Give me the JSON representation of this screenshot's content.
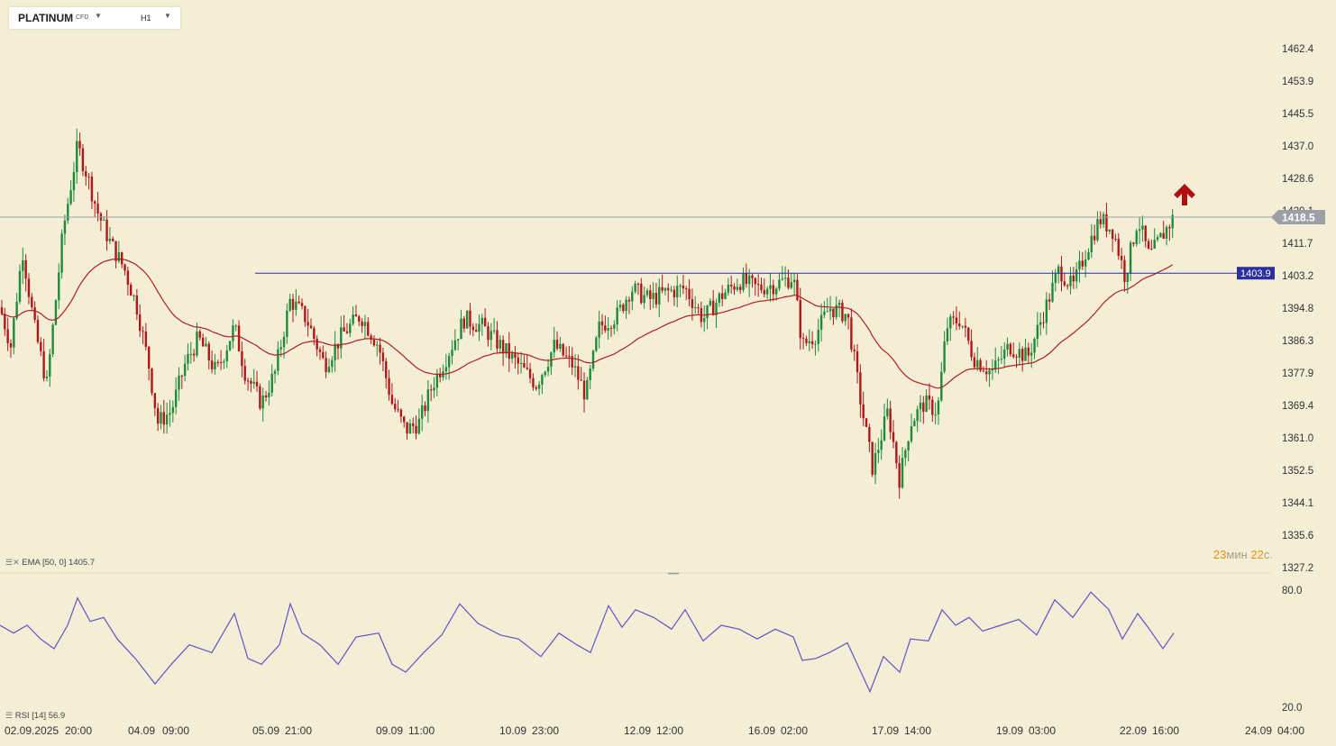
{
  "header": {
    "symbol": "PLATINUM",
    "symbol_type": "CFD",
    "timeframe": "H1"
  },
  "price_axis_labels": [
    "1462.4",
    "1453.9",
    "1445.5",
    "1437.0",
    "1428.6",
    "1420.1",
    "1411.7",
    "1403.2",
    "1394.8",
    "1386.3",
    "1377.9",
    "1369.4",
    "1361.0",
    "1352.5",
    "1344.1",
    "1335.6",
    "1327.2"
  ],
  "current_price": "1418.5",
  "horizontal_level": "1403.9",
  "timer": {
    "minutes": "23",
    "min_unit": "мин",
    "seconds": "22",
    "sec_unit": "с."
  },
  "ema_label": {
    "name": "EMA",
    "params": "[50, 0]",
    "value": "1405.7"
  },
  "rsi_label": {
    "name": "RSI",
    "params": "[14]",
    "value": "56.9"
  },
  "rsi_axis": [
    "80.0",
    "20.0"
  ],
  "time_labels": [
    "02.09.2025",
    "20:00",
    "04.09",
    "09:00",
    "05.09",
    "21:00",
    "09.09",
    "11:00",
    "10.09",
    "23:00",
    "12.09",
    "12:00",
    "16.09",
    "02:00",
    "17.09",
    "14:00",
    "19.09",
    "03:00",
    "22.09",
    "16:00",
    "24.09",
    "04:00"
  ],
  "colors": {
    "up": "#1e8a3a",
    "down": "#b01818",
    "ema": "#b02020",
    "rsi": "#6a4fc4",
    "level": "#2b2fa0",
    "current": "#9aa0a6",
    "signal": "#b01010"
  },
  "chart_data": {
    "type": "candlestick",
    "series": [
      {
        "name": "EMA [50, 0]"
      },
      {
        "name": "RSI [14]"
      }
    ],
    "ylim": [
      1327.2,
      1462.4
    ],
    "anchors": [
      {
        "t": 0,
        "p": 1395
      },
      {
        "t": 12,
        "p": 1385
      },
      {
        "t": 25,
        "p": 1410
      },
      {
        "t": 38,
        "p": 1390
      },
      {
        "t": 52,
        "p": 1375
      },
      {
        "t": 70,
        "p": 1415
      },
      {
        "t": 86,
        "p": 1437
      },
      {
        "t": 96,
        "p": 1430
      },
      {
        "t": 108,
        "p": 1420
      },
      {
        "t": 122,
        "p": 1412
      },
      {
        "t": 138,
        "p": 1405
      },
      {
        "t": 152,
        "p": 1395
      },
      {
        "t": 165,
        "p": 1380
      },
      {
        "t": 175,
        "p": 1365
      },
      {
        "t": 190,
        "p": 1368
      },
      {
        "t": 205,
        "p": 1380
      },
      {
        "t": 220,
        "p": 1387
      },
      {
        "t": 240,
        "p": 1378
      },
      {
        "t": 260,
        "p": 1390
      },
      {
        "t": 272,
        "p": 1378
      },
      {
        "t": 290,
        "p": 1370
      },
      {
        "t": 305,
        "p": 1378
      },
      {
        "t": 322,
        "p": 1397
      },
      {
        "t": 340,
        "p": 1392
      },
      {
        "t": 360,
        "p": 1380
      },
      {
        "t": 380,
        "p": 1388
      },
      {
        "t": 400,
        "p": 1393
      },
      {
        "t": 420,
        "p": 1385
      },
      {
        "t": 435,
        "p": 1370
      },
      {
        "t": 450,
        "p": 1363
      },
      {
        "t": 465,
        "p": 1365
      },
      {
        "t": 480,
        "p": 1375
      },
      {
        "t": 495,
        "p": 1382
      },
      {
        "t": 515,
        "p": 1392
      },
      {
        "t": 535,
        "p": 1390
      },
      {
        "t": 555,
        "p": 1385
      },
      {
        "t": 575,
        "p": 1380
      },
      {
        "t": 595,
        "p": 1375
      },
      {
        "t": 615,
        "p": 1385
      },
      {
        "t": 635,
        "p": 1380
      },
      {
        "t": 650,
        "p": 1372
      },
      {
        "t": 665,
        "p": 1390
      },
      {
        "t": 685,
        "p": 1393
      },
      {
        "t": 700,
        "p": 1400
      },
      {
        "t": 720,
        "p": 1397
      },
      {
        "t": 740,
        "p": 1399
      },
      {
        "t": 760,
        "p": 1400
      },
      {
        "t": 780,
        "p": 1392
      },
      {
        "t": 800,
        "p": 1398
      },
      {
        "t": 820,
        "p": 1402
      },
      {
        "t": 840,
        "p": 1400
      },
      {
        "t": 860,
        "p": 1401
      },
      {
        "t": 880,
        "p": 1403
      },
      {
        "t": 890,
        "p": 1385
      },
      {
        "t": 905,
        "p": 1388
      },
      {
        "t": 920,
        "p": 1395
      },
      {
        "t": 940,
        "p": 1393
      },
      {
        "t": 955,
        "p": 1370
      },
      {
        "t": 968,
        "p": 1353
      },
      {
        "t": 985,
        "p": 1368
      },
      {
        "t": 998,
        "p": 1350
      },
      {
        "t": 1010,
        "p": 1365
      },
      {
        "t": 1025,
        "p": 1370
      },
      {
        "t": 1040,
        "p": 1368
      },
      {
        "t": 1050,
        "p": 1390
      },
      {
        "t": 1065,
        "p": 1392
      },
      {
        "t": 1080,
        "p": 1382
      },
      {
        "t": 1100,
        "p": 1378
      },
      {
        "t": 1120,
        "p": 1385
      },
      {
        "t": 1140,
        "p": 1382
      },
      {
        "t": 1160,
        "p": 1395
      },
      {
        "t": 1175,
        "p": 1405
      },
      {
        "t": 1190,
        "p": 1400
      },
      {
        "t": 1205,
        "p": 1410
      },
      {
        "t": 1220,
        "p": 1418
      },
      {
        "t": 1235,
        "p": 1415
      },
      {
        "t": 1248,
        "p": 1403
      },
      {
        "t": 1262,
        "p": 1418
      },
      {
        "t": 1275,
        "p": 1408
      },
      {
        "t": 1290,
        "p": 1414
      },
      {
        "t": 1302,
        "p": 1418.5
      }
    ],
    "rsi_points": [
      [
        0,
        62
      ],
      [
        15,
        58
      ],
      [
        30,
        62
      ],
      [
        45,
        55
      ],
      [
        60,
        50
      ],
      [
        75,
        62
      ],
      [
        86,
        76
      ],
      [
        100,
        64
      ],
      [
        115,
        66
      ],
      [
        130,
        55
      ],
      [
        150,
        45
      ],
      [
        172,
        32
      ],
      [
        190,
        42
      ],
      [
        210,
        52
      ],
      [
        235,
        48
      ],
      [
        260,
        68
      ],
      [
        275,
        45
      ],
      [
        290,
        42
      ],
      [
        310,
        52
      ],
      [
        322,
        73
      ],
      [
        335,
        58
      ],
      [
        355,
        52
      ],
      [
        375,
        42
      ],
      [
        395,
        56
      ],
      [
        420,
        58
      ],
      [
        435,
        42
      ],
      [
        450,
        38
      ],
      [
        470,
        48
      ],
      [
        490,
        57
      ],
      [
        510,
        73
      ],
      [
        530,
        63
      ],
      [
        555,
        57
      ],
      [
        575,
        55
      ],
      [
        600,
        46
      ],
      [
        620,
        58
      ],
      [
        640,
        52
      ],
      [
        655,
        48
      ],
      [
        675,
        72
      ],
      [
        690,
        61
      ],
      [
        705,
        70
      ],
      [
        725,
        66
      ],
      [
        745,
        60
      ],
      [
        760,
        70
      ],
      [
        780,
        54
      ],
      [
        800,
        62
      ],
      [
        820,
        60
      ],
      [
        840,
        55
      ],
      [
        860,
        60
      ],
      [
        880,
        56
      ],
      [
        890,
        44
      ],
      [
        905,
        45
      ],
      [
        920,
        48
      ],
      [
        940,
        53
      ],
      [
        955,
        38
      ],
      [
        965,
        28
      ],
      [
        980,
        46
      ],
      [
        998,
        38
      ],
      [
        1010,
        55
      ],
      [
        1030,
        54
      ],
      [
        1045,
        70
      ],
      [
        1060,
        62
      ],
      [
        1075,
        66
      ],
      [
        1090,
        59
      ],
      [
        1110,
        62
      ],
      [
        1130,
        65
      ],
      [
        1150,
        57
      ],
      [
        1170,
        75
      ],
      [
        1190,
        66
      ],
      [
        1210,
        79
      ],
      [
        1230,
        70
      ],
      [
        1245,
        55
      ],
      [
        1262,
        68
      ],
      [
        1275,
        60
      ],
      [
        1290,
        50
      ],
      [
        1302,
        58
      ]
    ],
    "rsi_ylim": [
      20,
      80
    ]
  }
}
